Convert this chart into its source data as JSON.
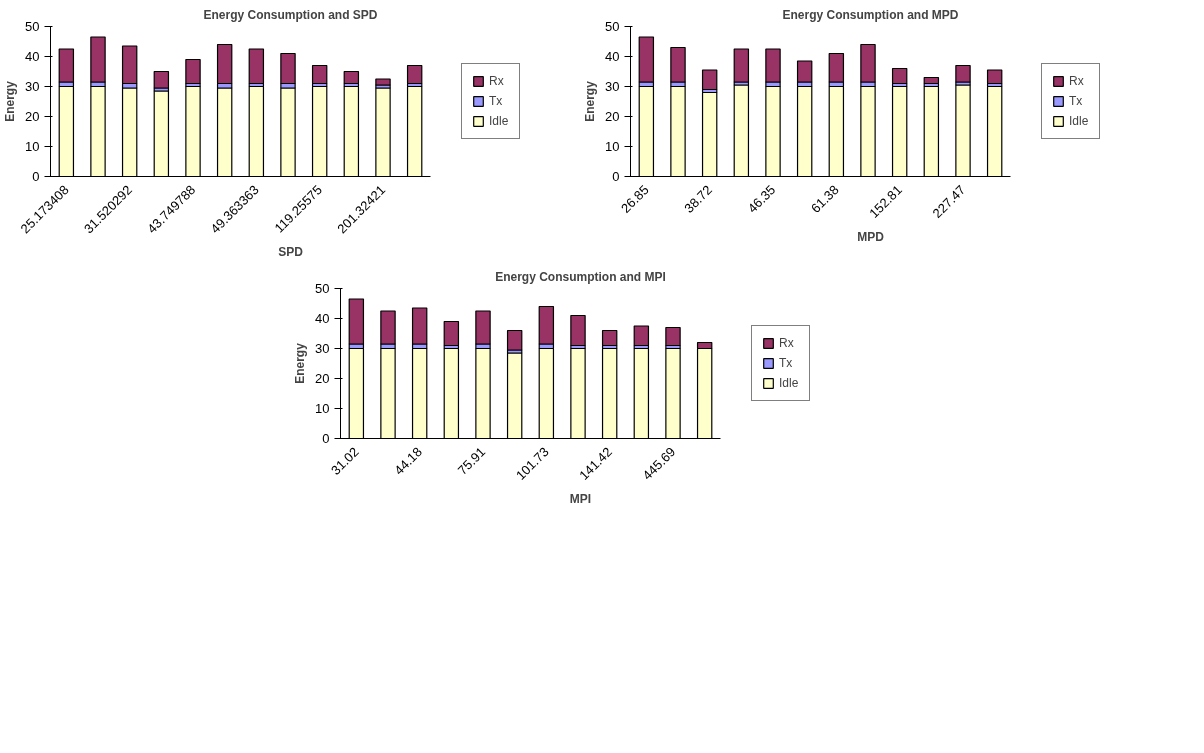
{
  "chart_data": [
    {
      "type": "bar",
      "stacked": true,
      "title": "Energy Consumption and SPD",
      "xlabel": "SPD",
      "ylabel": "Energy",
      "categories": [
        "25.173408",
        null,
        "31.520292",
        null,
        "43.749788",
        null,
        "49.363363",
        null,
        "119.25575",
        null,
        "201.32421",
        null
      ],
      "ylim": [
        0,
        50
      ],
      "yticks": [
        0,
        10,
        20,
        30,
        40,
        50
      ],
      "legend": "right",
      "series": [
        {
          "name": "Idle",
          "color": "#ffffcc",
          "values": [
            30,
            30,
            29.5,
            28.5,
            30,
            29.5,
            30,
            29.5,
            30,
            30,
            29.5,
            30
          ]
        },
        {
          "name": "Tx",
          "color": "#9999ff",
          "values": [
            1.5,
            1.5,
            1.5,
            1,
            1,
            1.5,
            1,
            1.5,
            1,
            1,
            1,
            1
          ]
        },
        {
          "name": "Rx",
          "color": "#993366",
          "values": [
            11,
            15,
            12.5,
            5.5,
            8,
            13,
            11.5,
            10,
            6,
            4,
            2,
            6
          ]
        }
      ]
    },
    {
      "type": "bar",
      "stacked": true,
      "title": "Energy Consumption and MPD",
      "xlabel": "MPD",
      "ylabel": "Energy",
      "categories": [
        "26.85",
        null,
        "38.72",
        null,
        "46.35",
        null,
        "61.38",
        null,
        "152.81",
        null,
        "227.47",
        null
      ],
      "ylim": [
        0,
        50
      ],
      "yticks": [
        0,
        10,
        20,
        30,
        40,
        50
      ],
      "legend": "right",
      "series": [
        {
          "name": "Idle",
          "color": "#ffffcc",
          "values": [
            30,
            30,
            28,
            30.5,
            30,
            30,
            30,
            30,
            30,
            30,
            30.5,
            30
          ]
        },
        {
          "name": "Tx",
          "color": "#9999ff",
          "values": [
            1.5,
            1.5,
            1,
            1,
            1.5,
            1.5,
            1.5,
            1.5,
            1,
            1,
            1,
            1
          ]
        },
        {
          "name": "Rx",
          "color": "#993366",
          "values": [
            15,
            11.5,
            6.5,
            11,
            11,
            7,
            9.5,
            12.5,
            5,
            2,
            5.5,
            4.5
          ]
        }
      ]
    },
    {
      "type": "bar",
      "stacked": true,
      "title": "Energy Consumption and MPI",
      "xlabel": "MPI",
      "ylabel": "Energy",
      "categories": [
        "31.02",
        null,
        "44.18",
        null,
        "75.91",
        null,
        "101.73",
        null,
        "141.42",
        null,
        "445.69",
        null
      ],
      "ylim": [
        0,
        50
      ],
      "yticks": [
        0,
        10,
        20,
        30,
        40,
        50
      ],
      "legend": "right",
      "series": [
        {
          "name": "Idle",
          "color": "#ffffcc",
          "values": [
            30,
            30,
            30,
            30,
            30,
            28.5,
            30,
            30,
            30,
            30,
            30,
            30
          ]
        },
        {
          "name": "Tx",
          "color": "#9999ff",
          "values": [
            1.5,
            1.5,
            1.5,
            1,
            1.5,
            1,
            1.5,
            1,
            1,
            1,
            1,
            null
          ]
        },
        {
          "name": "Rx",
          "color": "#993366",
          "values": [
            15,
            11,
            12,
            8,
            11,
            6.5,
            12.5,
            10,
            5,
            6.5,
            6,
            2
          ]
        }
      ]
    }
  ]
}
